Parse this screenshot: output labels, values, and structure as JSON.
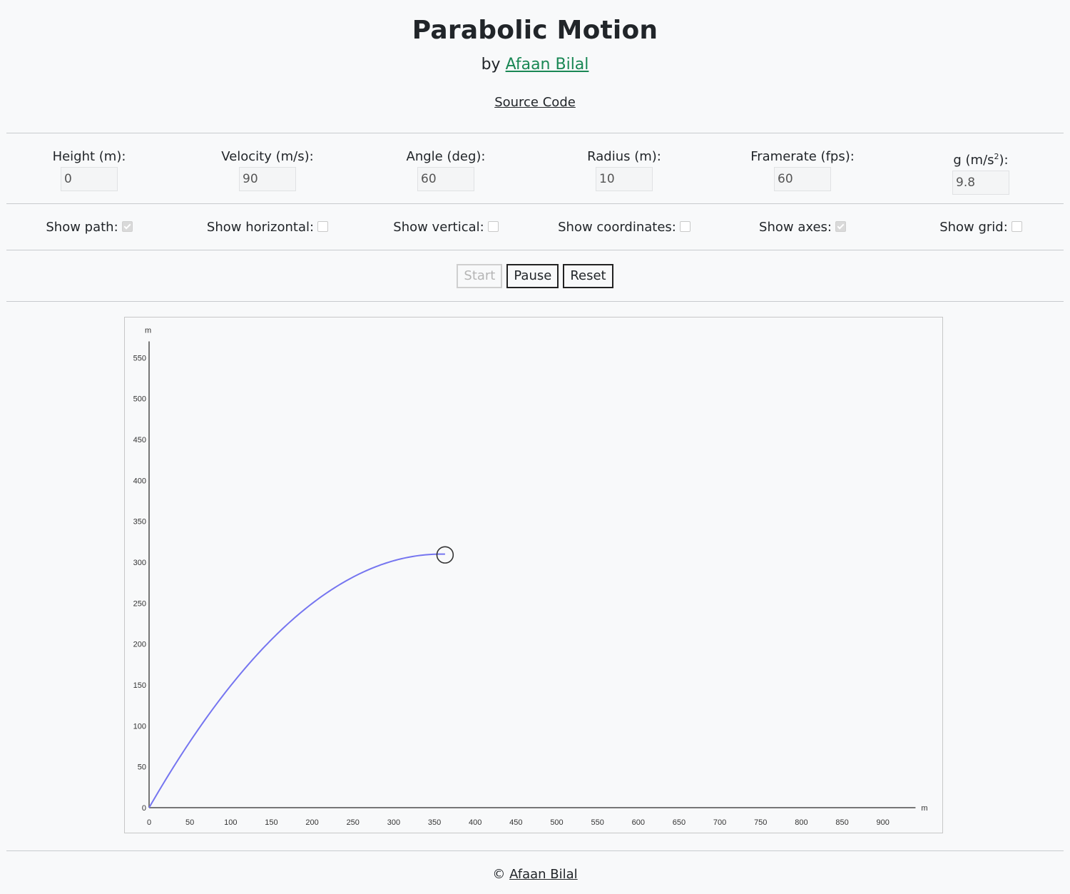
{
  "header": {
    "title": "Parabolic Motion",
    "by_prefix": "by",
    "author": "Afaan Bilal",
    "source_code": "Source Code"
  },
  "params": [
    {
      "name": "height",
      "label": "Height (m):",
      "value": "0"
    },
    {
      "name": "velocity",
      "label": "Velocity (m/s):",
      "value": "90"
    },
    {
      "name": "angle",
      "label": "Angle (deg):",
      "value": "60"
    },
    {
      "name": "radius",
      "label": "Radius (m):",
      "value": "10"
    },
    {
      "name": "framerate",
      "label": "Framerate (fps):",
      "value": "60"
    },
    {
      "name": "gravity",
      "label_prefix": "g (m/s",
      "label_sup": "2",
      "label_suffix": "):",
      "value": "9.8"
    }
  ],
  "toggles": [
    {
      "name": "show-path",
      "label": "Show path:",
      "checked": true
    },
    {
      "name": "show-horizontal",
      "label": "Show horizontal:",
      "checked": false
    },
    {
      "name": "show-vertical",
      "label": "Show vertical:",
      "checked": false
    },
    {
      "name": "show-coordinates",
      "label": "Show coordinates:",
      "checked": false
    },
    {
      "name": "show-axes",
      "label": "Show axes:",
      "checked": true
    },
    {
      "name": "show-grid",
      "label": "Show grid:",
      "checked": false
    }
  ],
  "buttons": {
    "start": "Start",
    "pause": "Pause",
    "reset": "Reset",
    "start_disabled": true
  },
  "chart_data": {
    "type": "line",
    "title": "",
    "xlabel": "m",
    "ylabel": "m",
    "xlim": [
      0,
      940
    ],
    "ylim": [
      0,
      570
    ],
    "x_ticks": [
      0,
      50,
      100,
      150,
      200,
      250,
      300,
      350,
      400,
      450,
      500,
      550,
      600,
      650,
      700,
      750,
      800,
      850,
      900
    ],
    "y_ticks": [
      0,
      50,
      100,
      150,
      200,
      250,
      300,
      350,
      400,
      450,
      500,
      550
    ],
    "grid": false,
    "projectile": {
      "velocity": 90,
      "angle_deg": 60,
      "gravity": 9.8,
      "height": 0,
      "radius": 10
    },
    "series": [
      {
        "color": "#7575f0",
        "x_end": 363
      }
    ],
    "ball": {
      "x": 363,
      "y": 309,
      "color": "#333333"
    }
  },
  "footer": {
    "copyright": "©",
    "author": "Afaan Bilal"
  }
}
